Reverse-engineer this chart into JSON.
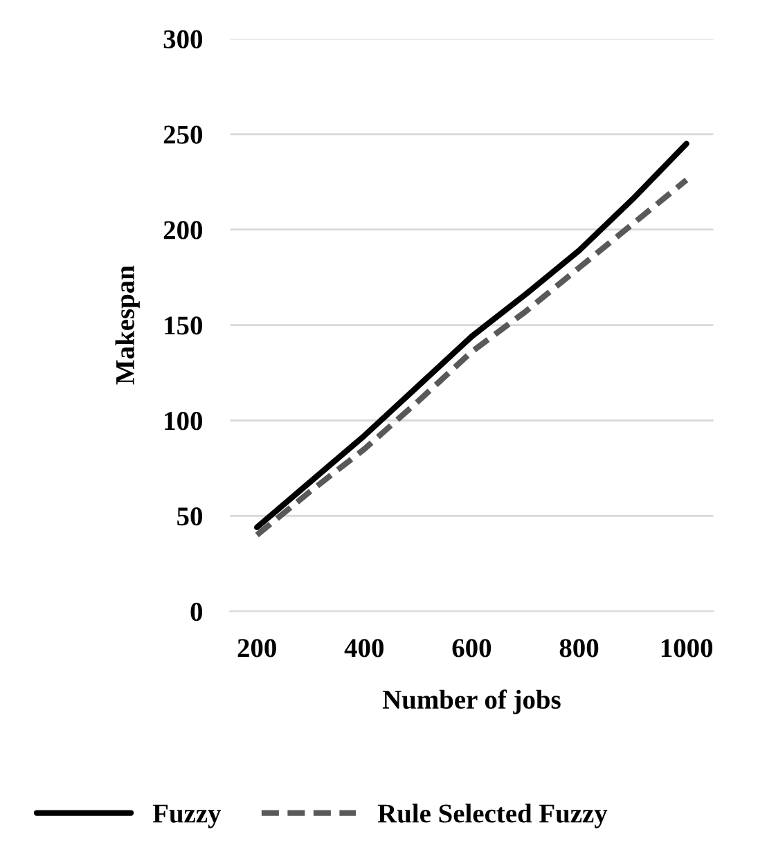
{
  "chart_data": {
    "type": "line",
    "xlabel": "Number of jobs",
    "ylabel": "Makespan",
    "x": [
      200,
      300,
      400,
      500,
      600,
      700,
      800,
      900,
      1000
    ],
    "xlim": [
      150,
      1050
    ],
    "xticks": [
      200,
      400,
      600,
      800,
      1000
    ],
    "ylim": [
      0,
      300
    ],
    "yticks": [
      0,
      50,
      100,
      150,
      200,
      250,
      300
    ],
    "grid": "y",
    "legend": "bottom",
    "series": [
      {
        "name": "Fuzzy",
        "color": "#000000",
        "line_style": "solid",
        "values": [
          44,
          68,
          92,
          118,
          144,
          166,
          189,
          216,
          245
        ]
      },
      {
        "name": "Rule Selected Fuzzy",
        "color": "#595959",
        "line_style": "dashed",
        "values": [
          40,
          63,
          85,
          110,
          136,
          157,
          180,
          203,
          226
        ]
      }
    ]
  }
}
